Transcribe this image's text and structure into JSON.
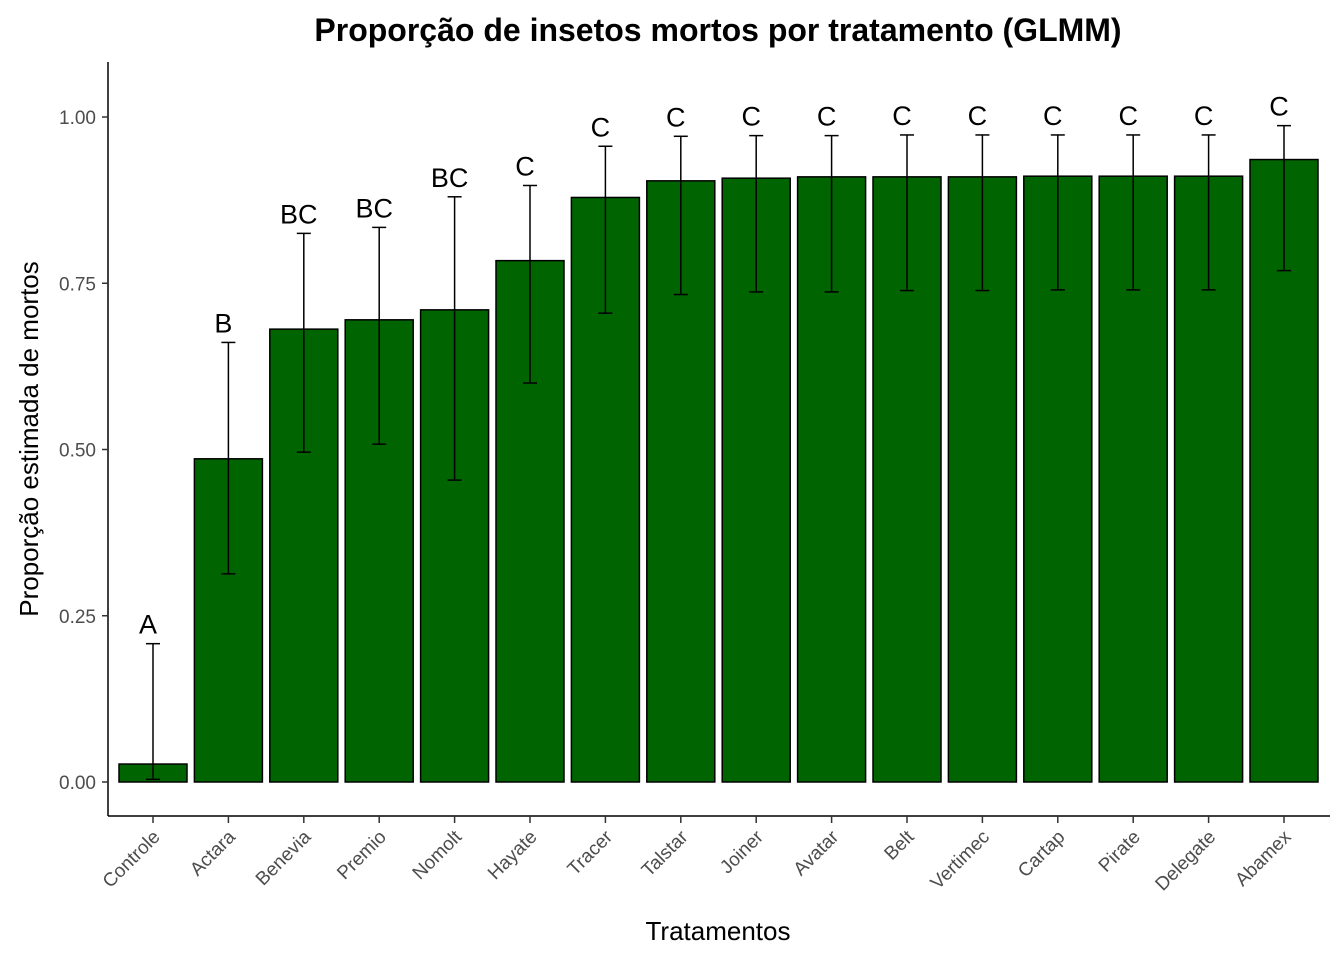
{
  "chart_data": {
    "type": "bar",
    "title": "Proporção de insetos mortos por tratamento (GLMM)",
    "xlabel": "Tratamentos",
    "ylabel": "Proporção estimada de mortos",
    "ylim": [
      -0.05,
      1.08
    ],
    "yticks": [
      0.0,
      0.25,
      0.5,
      0.75,
      1.0
    ],
    "ytick_labels": [
      "0.00",
      "0.25",
      "0.50",
      "0.75",
      "1.00"
    ],
    "grid": false,
    "bar_color": "#006400",
    "bar_edge_color": "#000000",
    "categories": [
      "Controle",
      "Actara",
      "Benevia",
      "Premio",
      "Nomolt",
      "Hayate",
      "Tracer",
      "Talstar",
      "Joiner",
      "Avatar",
      "Belt",
      "Vertimec",
      "Cartap",
      "Pirate",
      "Delegate",
      "Abamex"
    ],
    "values": [
      0.027,
      0.486,
      0.681,
      0.695,
      0.71,
      0.784,
      0.879,
      0.904,
      0.908,
      0.91,
      0.91,
      0.91,
      0.911,
      0.911,
      0.911,
      0.936
    ],
    "error_low": [
      0.004,
      0.313,
      0.496,
      0.508,
      0.454,
      0.6,
      0.705,
      0.733,
      0.737,
      0.737,
      0.739,
      0.739,
      0.74,
      0.74,
      0.74,
      0.769
    ],
    "error_high": [
      0.208,
      0.661,
      0.825,
      0.834,
      0.88,
      0.897,
      0.956,
      0.971,
      0.972,
      0.972,
      0.973,
      0.973,
      0.973,
      0.973,
      0.973,
      0.987
    ],
    "group_letters": [
      "A",
      "B",
      "BC",
      "BC",
      "BC",
      "C",
      "C",
      "C",
      "C",
      "C",
      "C",
      "C",
      "C",
      "C",
      "C",
      "C"
    ]
  }
}
